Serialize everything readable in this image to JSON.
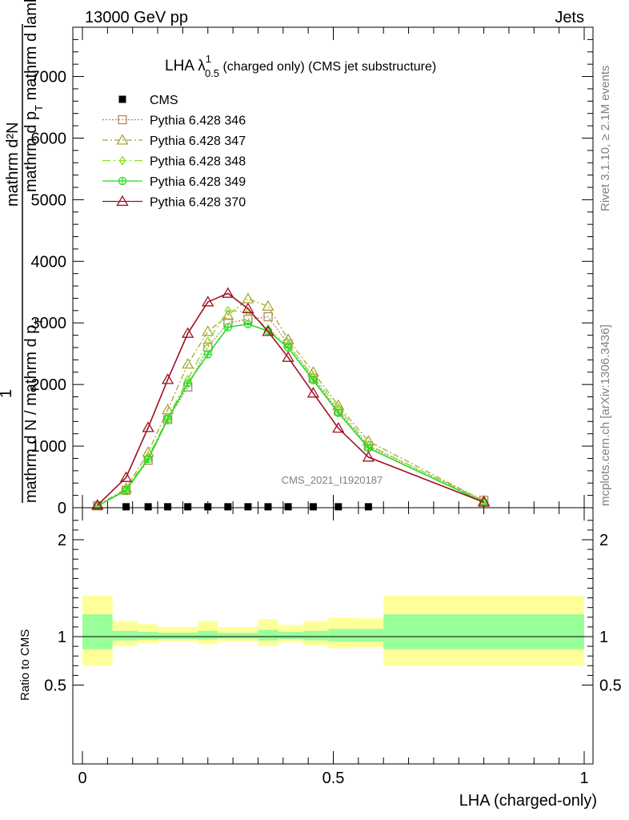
{
  "header": {
    "left": "13000 GeV pp",
    "right": "Jets"
  },
  "side": {
    "top": "Rivet 3.1.10, ≥ 2.1M events",
    "bottom": "mcplots.cern.ch [arXiv:1306.3436]"
  },
  "main_plot": {
    "title_prefix": "LHA λ",
    "title_sup": "1",
    "title_sub": "0.5",
    "title_suffix": " (charged only) (CMS jet substructure)",
    "ylabel_top": "mathrm d²N",
    "ylabel_top2": "mathrm d p",
    "ylabel_top2_sub": "T",
    "ylabel_top2_rest": " mathrm d lambda",
    "ylabel_one": "1",
    "ylabel_bot": "mathrm d N / mathrm d p",
    "ylabel_bot_sub": "T",
    "watermark": "CMS_2021_I1920187",
    "legend_entries": [
      {
        "label": "CMS"
      },
      {
        "label": "Pythia 6.428 346"
      },
      {
        "label": "Pythia 6.428 347"
      },
      {
        "label": "Pythia 6.428 348"
      },
      {
        "label": "Pythia 6.428 349"
      },
      {
        "label": "Pythia 6.428 370"
      }
    ]
  },
  "ratio_plot": {
    "ylabel": "Ratio to CMS",
    "xlabel": "LHA (charged-only)"
  },
  "chart_data": {
    "type": "line",
    "xlim": [
      -0.02,
      1.0
    ],
    "ylim": [
      0,
      7800
    ],
    "y_ticks": [
      0,
      1000,
      2000,
      3000,
      4000,
      5000,
      6000,
      7000
    ],
    "y_tick_labels": [
      "0",
      "1000",
      "2000",
      "3000",
      "4000",
      "5000",
      "6000",
      "7000"
    ],
    "x_ticks": [
      0,
      0.5,
      1
    ],
    "x_tick_labels": [
      "0",
      "0.5",
      "1"
    ],
    "x": [
      0.03,
      0.087,
      0.131,
      0.17,
      0.21,
      0.25,
      0.29,
      0.33,
      0.37,
      0.41,
      0.46,
      0.51,
      0.57,
      0.8
    ],
    "series": [
      {
        "name": "CMS",
        "color": "#000000",
        "marker": "square",
        "x": [
          0.087,
          0.131,
          0.17,
          0.21,
          0.25,
          0.29,
          0.33,
          0.37,
          0.41,
          0.46,
          0.51,
          0.57
        ],
        "values": [
          15,
          15,
          15,
          15,
          15,
          15,
          15,
          15,
          15,
          15,
          15,
          15
        ]
      },
      {
        "name": "Pythia 6.428 346",
        "color": "#b5865f",
        "marker": "open-square",
        "dash": "2,2",
        "values": [
          30,
          280,
          770,
          1430,
          1960,
          2610,
          3000,
          3060,
          3100,
          2660,
          2100,
          1570,
          1000,
          120
        ]
      },
      {
        "name": "Pythia 6.428 347",
        "color": "#a8a830",
        "marker": "open-triangle",
        "dash": "7,3,2,3",
        "values": [
          35,
          310,
          900,
          1590,
          2330,
          2860,
          3120,
          3390,
          3270,
          2730,
          2200,
          1660,
          1080,
          110
        ]
      },
      {
        "name": "Pythia 6.428 348",
        "color": "#88dd22",
        "marker": "open-diamond",
        "dash": "10,4,2,4",
        "values": [
          30,
          290,
          820,
          1460,
          2080,
          2700,
          3200,
          3180,
          2900,
          2640,
          2130,
          1620,
          1020,
          100
        ]
      },
      {
        "name": "Pythia 6.428 349",
        "color": "#22dd22",
        "marker": "open-circle-cross",
        "dash": "",
        "values": [
          30,
          280,
          790,
          1440,
          2020,
          2490,
          2930,
          2980,
          2870,
          2600,
          2070,
          1540,
          970,
          90
        ]
      },
      {
        "name": "Pythia 6.428 370",
        "color": "#a01020",
        "marker": "open-triangle",
        "dash": "",
        "values": [
          40,
          490,
          1300,
          2080,
          2830,
          3340,
          3480,
          3230,
          2860,
          2440,
          1860,
          1290,
          820,
          90
        ]
      }
    ],
    "ratio": {
      "ylim": [
        0.35,
        2.3
      ],
      "y_ticks": [
        0.5,
        1,
        2
      ],
      "y_tick_labels": [
        "0.5",
        "1",
        "2"
      ],
      "bands": [
        {
          "x0": 0.0,
          "x1": 0.06,
          "y_outer": [
            0.7,
            1.42
          ],
          "y_inner": [
            0.87,
            1.23
          ]
        },
        {
          "x0": 0.06,
          "x1": 0.11,
          "y_outer": [
            0.9,
            1.16
          ],
          "y_inner": [
            0.96,
            1.06
          ]
        },
        {
          "x0": 0.11,
          "x1": 0.15,
          "y_outer": [
            0.93,
            1.13
          ],
          "y_inner": [
            0.97,
            1.05
          ]
        },
        {
          "x0": 0.15,
          "x1": 0.23,
          "y_outer": [
            0.95,
            1.1
          ],
          "y_inner": [
            0.975,
            1.04
          ]
        },
        {
          "x0": 0.23,
          "x1": 0.27,
          "y_outer": [
            0.92,
            1.16
          ],
          "y_inner": [
            0.97,
            1.06
          ]
        },
        {
          "x0": 0.27,
          "x1": 0.35,
          "y_outer": [
            0.95,
            1.1
          ],
          "y_inner": [
            0.98,
            1.04
          ]
        },
        {
          "x0": 0.35,
          "x1": 0.39,
          "y_outer": [
            0.9,
            1.18
          ],
          "y_inner": [
            0.96,
            1.07
          ]
        },
        {
          "x0": 0.39,
          "x1": 0.44,
          "y_outer": [
            0.94,
            1.12
          ],
          "y_inner": [
            0.975,
            1.05
          ]
        },
        {
          "x0": 0.44,
          "x1": 0.49,
          "y_outer": [
            0.91,
            1.16
          ],
          "y_inner": [
            0.96,
            1.06
          ]
        },
        {
          "x0": 0.49,
          "x1": 0.54,
          "y_outer": [
            0.88,
            1.2
          ],
          "y_inner": [
            0.95,
            1.08
          ]
        },
        {
          "x0": 0.54,
          "x1": 0.6,
          "y_outer": [
            0.89,
            1.19
          ],
          "y_inner": [
            0.95,
            1.08
          ]
        },
        {
          "x0": 0.6,
          "x1": 1.0,
          "y_outer": [
            0.7,
            1.42
          ],
          "y_inner": [
            0.87,
            1.23
          ]
        }
      ],
      "outer_color": "#ffff99",
      "inner_color": "#99ff99"
    }
  }
}
